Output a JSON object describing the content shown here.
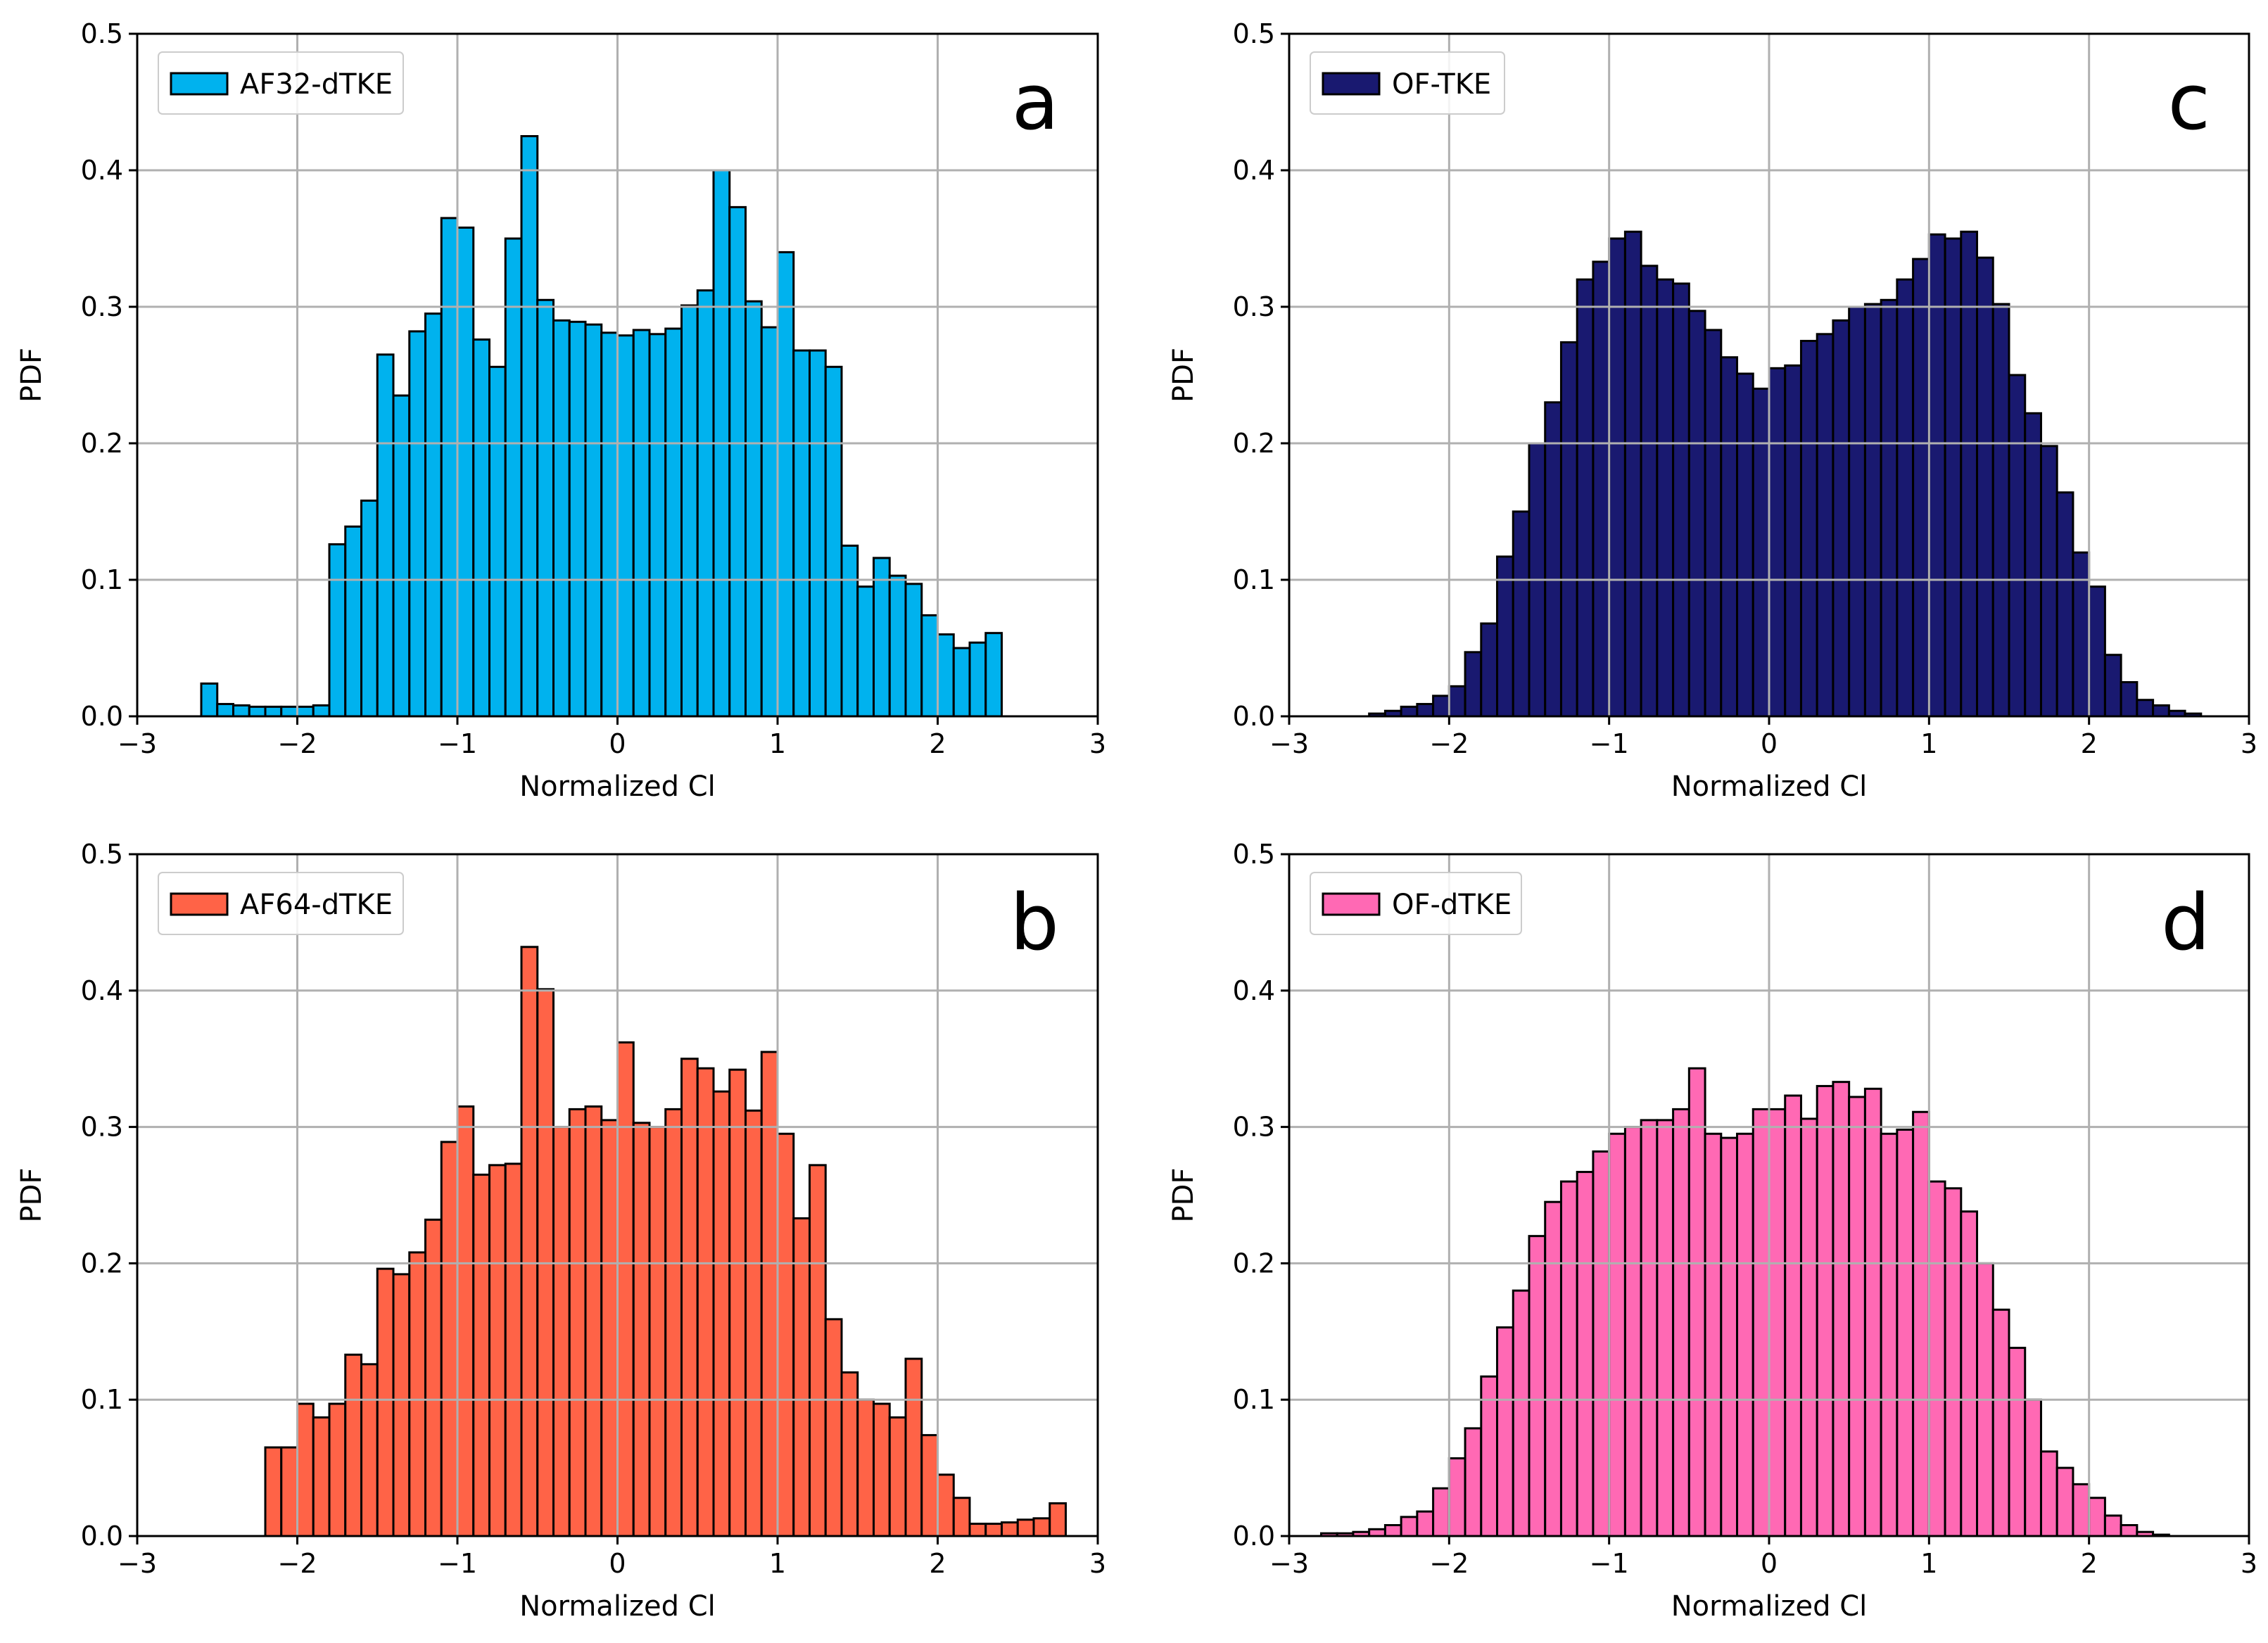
{
  "chart_data": [
    {
      "type": "bar",
      "panel_label": "a",
      "legend": [
        {
          "name": "AF32-dTKE",
          "color": "#00b2ee"
        }
      ],
      "legend_location": "upper-left",
      "xlabel": "Normalized Cl",
      "ylabel": "PDF",
      "xlim": [
        -3,
        3
      ],
      "ylim": [
        0,
        0.5
      ],
      "xticks": [
        "−3",
        "−2",
        "−1",
        "0",
        "1",
        "2",
        "3"
      ],
      "yticks": [
        "0.0",
        "0.1",
        "0.2",
        "0.3",
        "0.4",
        "0.5"
      ],
      "grid": true,
      "bin_start": -2.6,
      "bin_width": 0.1,
      "values": [
        0.024,
        0.009,
        0.008,
        0.007,
        0.007,
        0.007,
        0.007,
        0.008,
        0.126,
        0.139,
        0.158,
        0.265,
        0.235,
        0.282,
        0.295,
        0.365,
        0.358,
        0.276,
        0.256,
        0.35,
        0.425,
        0.305,
        0.29,
        0.289,
        0.287,
        0.281,
        0.279,
        0.283,
        0.28,
        0.284,
        0.301,
        0.312,
        0.4,
        0.373,
        0.304,
        0.285,
        0.34,
        0.268,
        0.268,
        0.256,
        0.125,
        0.095,
        0.116,
        0.103,
        0.097,
        0.074,
        0.06,
        0.05,
        0.054,
        0.061
      ],
      "series": [
        {
          "name": "AF32-dTKE",
          "color": "#00b2ee"
        }
      ]
    },
    {
      "type": "bar",
      "panel_label": "b",
      "legend": [
        {
          "name": "AF64-dTKE",
          "color": "#ff6347"
        }
      ],
      "legend_location": "upper-left",
      "xlabel": "Normalized Cl",
      "ylabel": "PDF",
      "xlim": [
        -3,
        3
      ],
      "ylim": [
        0,
        0.5
      ],
      "xticks": [
        "−3",
        "−2",
        "−1",
        "0",
        "1",
        "2",
        "3"
      ],
      "yticks": [
        "0.0",
        "0.1",
        "0.2",
        "0.3",
        "0.4",
        "0.5"
      ],
      "grid": true,
      "bin_start": -2.2,
      "bin_width": 0.1,
      "values": [
        0.065,
        0.065,
        0.097,
        0.087,
        0.097,
        0.133,
        0.126,
        0.196,
        0.192,
        0.208,
        0.232,
        0.289,
        0.315,
        0.265,
        0.272,
        0.273,
        0.432,
        0.401,
        0.3,
        0.313,
        0.315,
        0.305,
        0.362,
        0.303,
        0.3,
        0.313,
        0.35,
        0.343,
        0.326,
        0.342,
        0.312,
        0.355,
        0.295,
        0.233,
        0.272,
        0.159,
        0.12,
        0.1,
        0.097,
        0.087,
        0.13,
        0.074,
        0.045,
        0.028,
        0.009,
        0.009,
        0.01,
        0.012,
        0.013,
        0.024
      ],
      "series": [
        {
          "name": "AF64-dTKE",
          "color": "#ff6347"
        }
      ]
    },
    {
      "type": "bar",
      "panel_label": "c",
      "legend": [
        {
          "name": "OF-TKE",
          "color": "#191970"
        }
      ],
      "legend_location": "upper-left",
      "xlabel": "Normalized Cl",
      "ylabel": "PDF",
      "xlim": [
        -3,
        3
      ],
      "ylim": [
        0,
        0.5
      ],
      "xticks": [
        "−3",
        "−2",
        "−1",
        "0",
        "1",
        "2",
        "3"
      ],
      "yticks": [
        "0.0",
        "0.1",
        "0.2",
        "0.3",
        "0.4",
        "0.5"
      ],
      "grid": true,
      "bin_start": -2.5,
      "bin_width": 0.1,
      "values": [
        0.002,
        0.004,
        0.007,
        0.009,
        0.015,
        0.022,
        0.047,
        0.068,
        0.117,
        0.15,
        0.2,
        0.23,
        0.274,
        0.32,
        0.333,
        0.35,
        0.355,
        0.33,
        0.32,
        0.317,
        0.297,
        0.283,
        0.263,
        0.251,
        0.24,
        0.255,
        0.257,
        0.275,
        0.28,
        0.29,
        0.3,
        0.302,
        0.305,
        0.32,
        0.335,
        0.353,
        0.35,
        0.355,
        0.336,
        0.302,
        0.25,
        0.222,
        0.198,
        0.164,
        0.12,
        0.095,
        0.045,
        0.025,
        0.012,
        0.008,
        0.004,
        0.002
      ],
      "series": [
        {
          "name": "OF-TKE",
          "color": "#191970"
        }
      ]
    },
    {
      "type": "bar",
      "panel_label": "d",
      "legend": [
        {
          "name": "OF-dTKE",
          "color": "#ff69b4"
        }
      ],
      "legend_location": "upper-left",
      "xlabel": "Normalized Cl",
      "ylabel": "PDF",
      "xlim": [
        -3,
        3
      ],
      "ylim": [
        0,
        0.5
      ],
      "xticks": [
        "−3",
        "−2",
        "−1",
        "0",
        "1",
        "2",
        "3"
      ],
      "yticks": [
        "0.0",
        "0.1",
        "0.2",
        "0.3",
        "0.4",
        "0.5"
      ],
      "grid": true,
      "bin_start": -2.8,
      "bin_width": 0.1,
      "values": [
        0.002,
        0.002,
        0.003,
        0.005,
        0.008,
        0.014,
        0.018,
        0.035,
        0.057,
        0.079,
        0.117,
        0.153,
        0.18,
        0.22,
        0.245,
        0.26,
        0.267,
        0.282,
        0.295,
        0.3,
        0.305,
        0.305,
        0.313,
        0.343,
        0.295,
        0.292,
        0.295,
        0.313,
        0.313,
        0.323,
        0.306,
        0.33,
        0.333,
        0.322,
        0.328,
        0.295,
        0.298,
        0.311,
        0.26,
        0.255,
        0.238,
        0.2,
        0.166,
        0.138,
        0.1,
        0.062,
        0.05,
        0.038,
        0.028,
        0.015,
        0.008,
        0.003,
        0.001
      ],
      "series": [
        {
          "name": "OF-dTKE",
          "color": "#ff69b4"
        }
      ]
    }
  ]
}
